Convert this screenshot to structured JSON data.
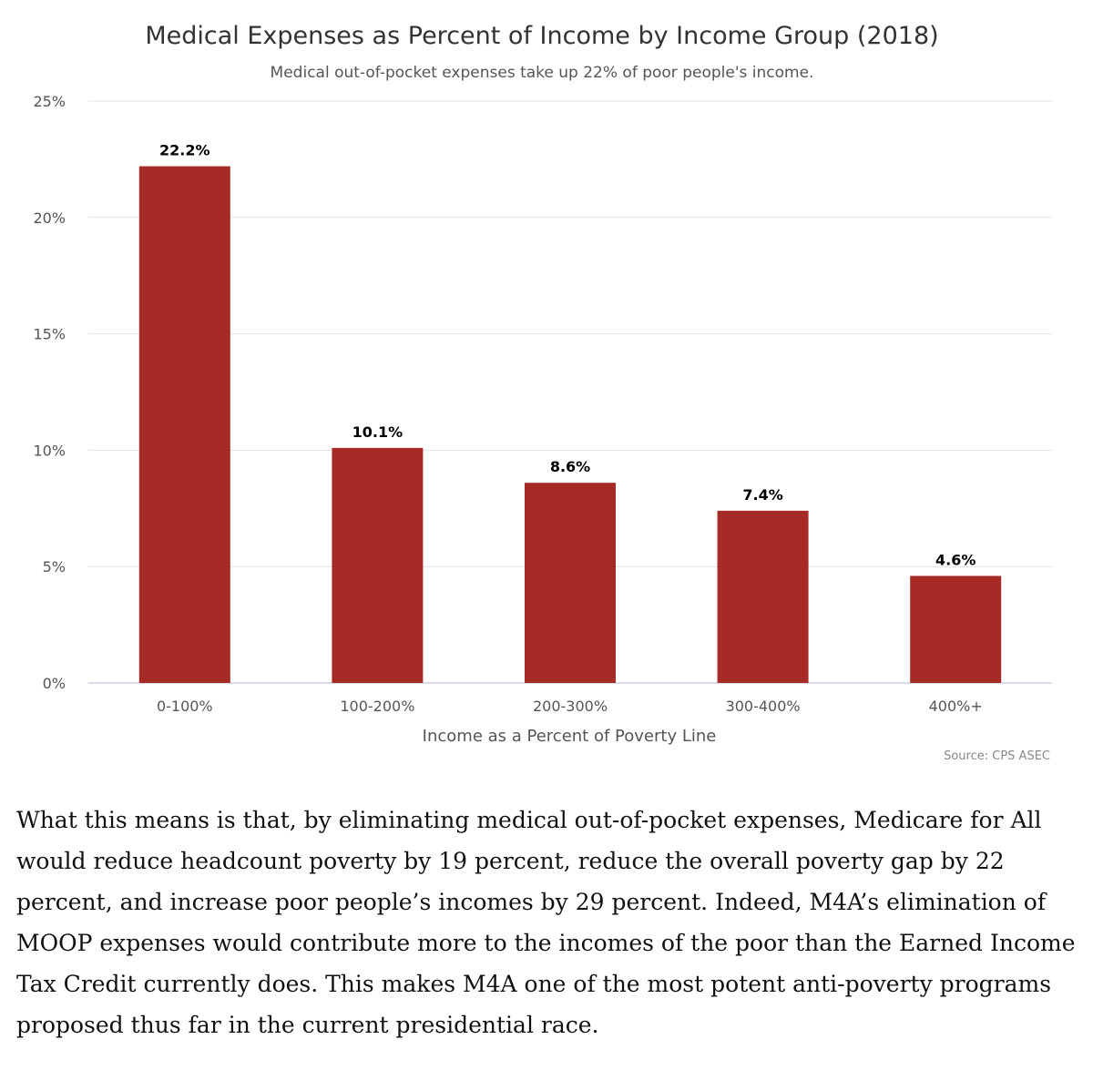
{
  "chart_data": {
    "type": "bar",
    "title": "Medical Expenses as Percent of Income by Income Group (2018)",
    "subtitle": "Medical out-of-pocket expenses take up 22% of poor people's income.",
    "categories": [
      "0-100%",
      "100-200%",
      "200-300%",
      "300-400%",
      "400%+"
    ],
    "values": [
      22.2,
      10.1,
      8.6,
      7.4,
      4.6
    ],
    "data_labels": [
      "22.2%",
      "10.1%",
      "8.6%",
      "7.4%",
      "4.6%"
    ],
    "xlabel": "Income as a Percent of Poverty Line",
    "ylabel": "",
    "ylim": [
      0,
      25
    ],
    "yticks": [
      0,
      5,
      10,
      15,
      20,
      25
    ],
    "ytick_labels": [
      "0%",
      "5%",
      "10%",
      "15%",
      "20%",
      "25%"
    ],
    "grid": true,
    "legend": "none",
    "bar_color": "#a62a26",
    "source": "Source: CPS ASEC"
  },
  "article": {
    "paragraph": "What this means is that, by eliminating medical out-of-pocket expenses, Medicare for All would reduce headcount poverty by 19 percent, reduce the overall poverty gap by 22 percent, and increase poor people’s incomes by 29 percent. Indeed, M4A’s elimination of MOOP expenses would contribute more to the incomes of the poor than the Earned Income Tax Credit currently does. This makes M4A one of the most potent anti-poverty programs proposed thus far in the current presidential race."
  }
}
